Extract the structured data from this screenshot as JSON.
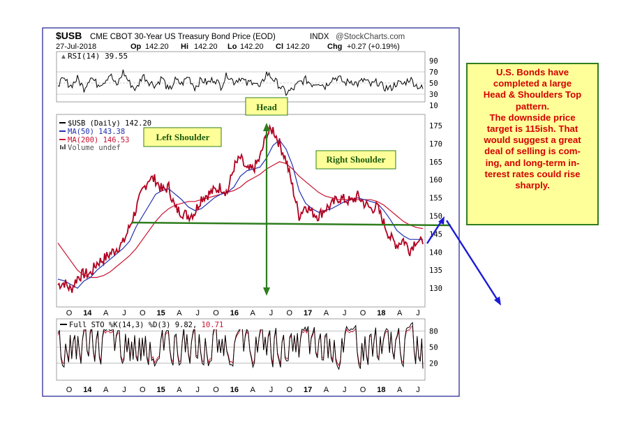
{
  "header": {
    "symbol": "$USB",
    "description": "CME CBOT 30-Year US Treasury Bond Price (EOD)",
    "exchange": "INDX",
    "source": "@StockCharts.com",
    "date": "27-Jul-2018",
    "open_label": "Op",
    "open": "142.20",
    "high_label": "Hi",
    "high": "142.20",
    "low_label": "Lo",
    "low": "142.20",
    "close_label": "Cl",
    "close": "142.20",
    "change_label": "Chg",
    "change": "+0.27 (+0.19%)"
  },
  "rsi_panel": {
    "label": "RSI(14) 39.55",
    "ticks": [
      "90",
      "70",
      "50",
      "30",
      "10"
    ]
  },
  "price_panel": {
    "legend": [
      {
        "text": "$USB (Daily) 142.20",
        "color": "#000000"
      },
      {
        "text": "MA(50) 143.38",
        "color": "#1f2fb0"
      },
      {
        "text": "MA(200) 146.53",
        "color": "#c8102e"
      },
      {
        "text": "Volume undef",
        "color": "#555555"
      }
    ],
    "ticks": [
      "175",
      "170",
      "165",
      "160",
      "155",
      "150",
      "145",
      "140",
      "135",
      "130"
    ]
  },
  "sto_panel": {
    "label_prefix": "Full STO %K(14,3) %D(3) 9.82,",
    "label_value": "10.71",
    "ticks": [
      "80",
      "50",
      "20"
    ]
  },
  "x_labels": [
    "O",
    "14",
    "A",
    "J",
    "O",
    "15",
    "A",
    "J",
    "O",
    "16",
    "A",
    "J",
    "O",
    "17",
    "A",
    "J",
    "O",
    "18",
    "A",
    "J"
  ],
  "annotations": {
    "head": "Head",
    "left_shoulder": "Left Shoulder",
    "right_shoulder": "Right Shoulder"
  },
  "note": {
    "lines": [
      "U.S. Bonds have",
      "completed a large",
      "Head & Shoulders Top",
      "pattern.",
      "The downside price",
      "target is 115ish. That",
      "would suggest a great",
      "deal of selling is com-",
      "ing, and long-term in-",
      "terest rates could rise",
      "sharply."
    ]
  },
  "colors": {
    "price": "#b00020",
    "ma50": "#1f2fb0",
    "ma200": "#c8102e",
    "neckline": "#2e7d1e",
    "forecast_arrow": "#1a1ad8",
    "label_box": "#ffff99"
  },
  "chart_data": {
    "type": "line",
    "title": "$USB CME CBOT 30-Year US Treasury Bond Price (EOD)",
    "x": [
      "2013-10",
      "2013-12",
      "2014-01",
      "2014-02",
      "2014-03",
      "2014-04",
      "2014-05",
      "2014-06",
      "2014-07",
      "2014-08",
      "2014-09",
      "2014-10",
      "2014-11",
      "2014-12",
      "2015-01",
      "2015-02",
      "2015-03",
      "2015-04",
      "2015-05",
      "2015-06",
      "2015-07",
      "2015-08",
      "2015-09",
      "2015-10",
      "2015-11",
      "2015-12",
      "2016-01",
      "2016-02",
      "2016-03",
      "2016-04",
      "2016-05",
      "2016-06",
      "2016-07",
      "2016-08",
      "2016-09",
      "2016-10",
      "2016-11",
      "2016-12",
      "2017-01",
      "2017-02",
      "2017-03",
      "2017-04",
      "2017-05",
      "2017-06",
      "2017-07",
      "2017-08",
      "2017-09",
      "2017-10",
      "2017-11",
      "2017-12",
      "2018-01",
      "2018-02",
      "2018-03",
      "2018-04",
      "2018-05",
      "2018-06",
      "2018-07"
    ],
    "series": [
      {
        "name": "$USB (Daily)",
        "values": [
          131,
          131.5,
          129.5,
          133,
          134,
          134,
          137,
          138,
          139.5,
          141,
          142.5,
          147,
          152,
          157,
          160.5,
          160,
          157,
          158,
          152,
          151,
          150,
          151,
          155,
          156,
          157,
          158,
          156.5,
          163.5,
          166,
          162.5,
          163,
          166,
          172.5,
          174,
          170,
          165.5,
          158,
          150,
          153,
          151,
          150,
          152,
          153,
          155,
          154.5,
          154,
          155.5,
          153.5,
          152,
          152.5,
          148,
          144,
          142,
          143.5,
          140.5,
          143.5,
          142.2
        ]
      },
      {
        "name": "MA(50)",
        "values": [
          132.5,
          132,
          131,
          130,
          132,
          133,
          135,
          136.5,
          138,
          139.5,
          141,
          143,
          147,
          150,
          153,
          156,
          157,
          157.5,
          156,
          154.5,
          152.5,
          151.5,
          152,
          153.5,
          155,
          156,
          156.5,
          158,
          161,
          162.5,
          163,
          163.5,
          166,
          169.5,
          171,
          168.5,
          164,
          157,
          153.5,
          152,
          151,
          151.5,
          152,
          153,
          154,
          154.5,
          155,
          154.5,
          154,
          153.5,
          151.5,
          149,
          146,
          144.5,
          143.5,
          143.5,
          143.4
        ]
      },
      {
        "name": "MA(200)",
        "values": [
          142.5,
          140,
          137.5,
          135,
          133.5,
          133,
          133,
          133.5,
          134.5,
          136,
          137.5,
          139,
          141,
          143.5,
          146,
          148.5,
          150.5,
          152,
          153,
          153.5,
          154,
          154,
          154.5,
          155,
          155.5,
          156,
          156.5,
          157,
          158,
          159.5,
          160.5,
          161.5,
          163,
          164,
          165,
          164.5,
          163,
          161,
          159.5,
          158,
          156.5,
          155.5,
          155,
          154.5,
          154.5,
          154.5,
          154.5,
          154.5,
          154.5,
          154,
          153,
          151.5,
          150,
          148.5,
          147.5,
          146.8,
          146.5
        ]
      }
    ],
    "rsi": {
      "values": [
        50,
        55,
        45,
        58,
        40,
        62,
        48,
        52,
        66,
        44,
        70,
        50,
        38,
        64,
        52,
        46,
        60,
        35,
        55,
        48,
        62,
        42,
        56,
        50,
        58,
        44,
        66,
        52,
        60,
        48,
        55,
        40,
        68,
        58,
        45,
        32,
        38,
        50,
        56,
        48,
        52,
        44,
        58,
        60,
        50,
        54,
        48,
        56,
        46,
        52,
        42,
        40,
        50,
        48,
        58,
        46,
        39.55
      ],
      "overbought": 70,
      "oversold": 30
    },
    "stochastic": {
      "percent_k": 9.82,
      "percent_d": 10.71,
      "levels": [
        80,
        50,
        20
      ]
    },
    "neckline": 147,
    "ylim": [
      127,
      178
    ],
    "grid": false,
    "legend_position": "top-left"
  }
}
